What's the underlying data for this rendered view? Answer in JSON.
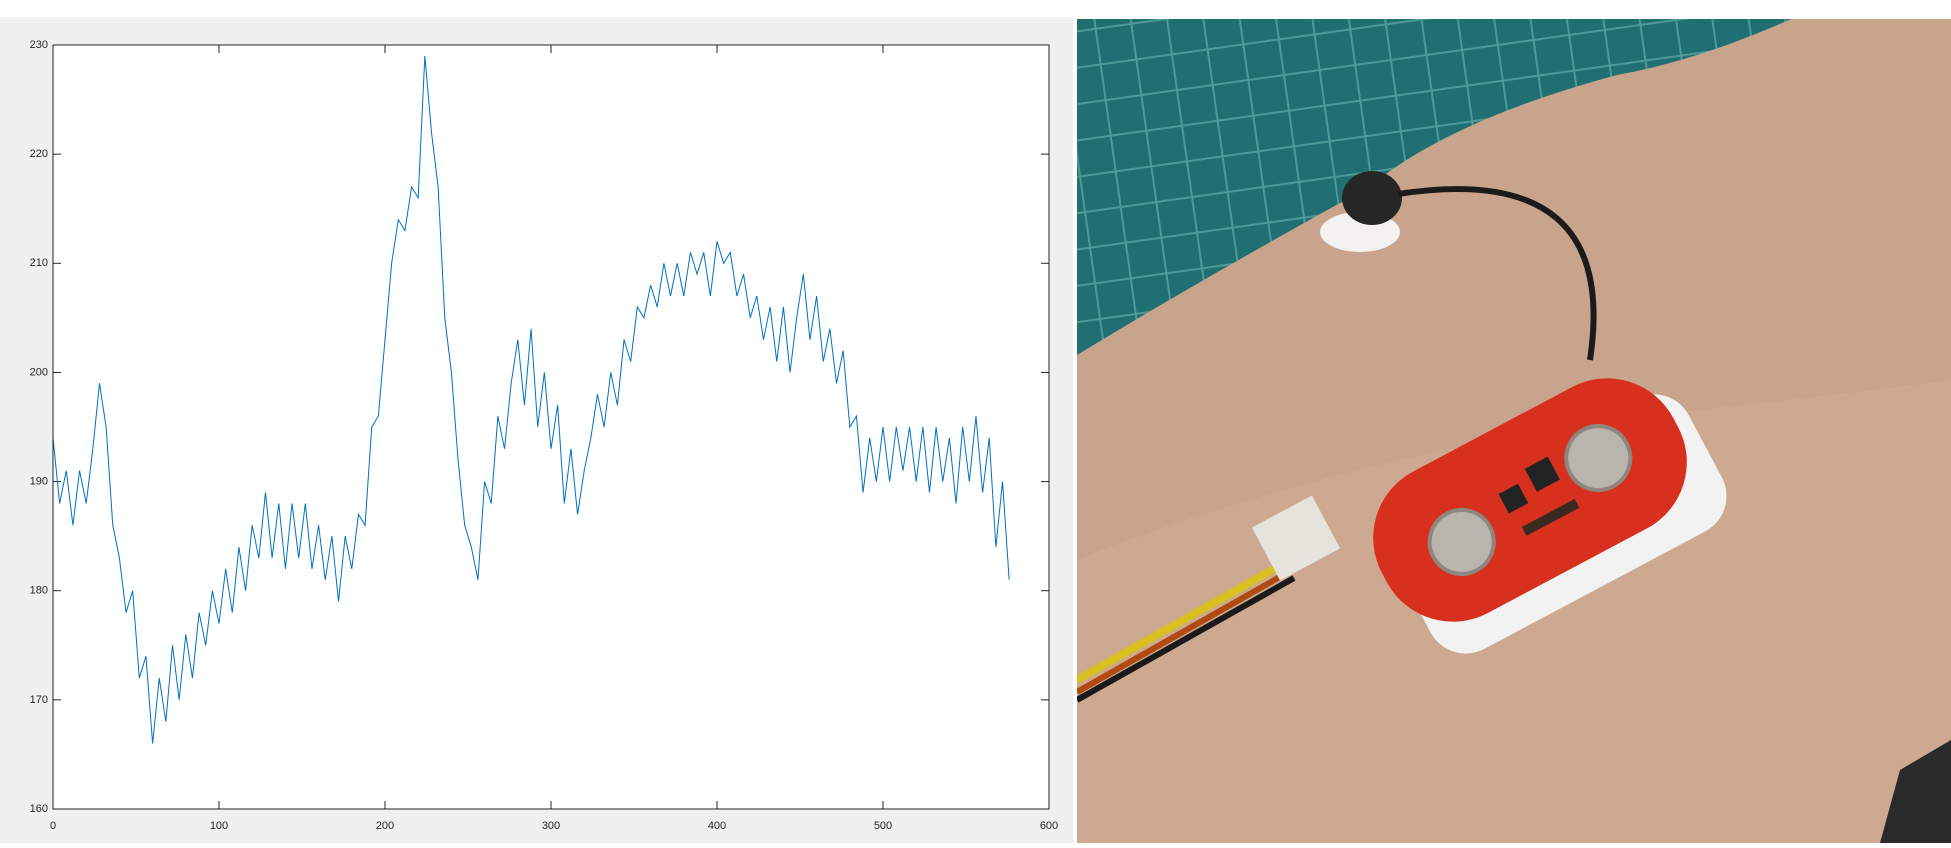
{
  "chart_data": {
    "type": "line",
    "color": "#0072bd",
    "x": [
      0,
      4,
      8,
      12,
      16,
      20,
      24,
      28,
      32,
      36,
      40,
      44,
      48,
      52,
      56,
      60,
      64,
      68,
      72,
      76,
      80,
      84,
      88,
      92,
      96,
      100,
      104,
      108,
      112,
      116,
      120,
      124,
      128,
      132,
      136,
      140,
      144,
      148,
      152,
      156,
      160,
      164,
      168,
      172,
      176,
      180,
      184,
      188,
      192,
      196,
      200,
      204,
      208,
      212,
      216,
      220,
      224,
      228,
      232,
      236,
      240,
      244,
      248,
      252,
      256,
      260,
      264,
      268,
      272,
      276,
      280,
      284,
      288,
      292,
      296,
      300,
      304,
      308,
      312,
      316,
      320,
      324,
      328,
      332,
      336,
      340,
      344,
      348,
      352,
      356,
      360,
      364,
      368,
      372,
      376,
      380,
      384,
      388,
      392,
      396,
      400,
      404,
      408,
      412,
      416,
      420,
      424,
      428,
      432,
      436,
      440,
      444,
      448,
      452,
      456,
      460,
      464,
      468,
      472,
      476,
      480,
      484,
      488,
      492,
      496,
      500,
      504,
      508,
      512,
      516,
      520,
      524,
      528,
      532,
      536,
      540,
      544,
      548,
      552,
      556,
      560,
      564,
      568,
      572,
      576
    ],
    "values": [
      194,
      188,
      191,
      186,
      191,
      188,
      193,
      199,
      195,
      186,
      183,
      178,
      180,
      172,
      174,
      166,
      172,
      168,
      175,
      170,
      176,
      172,
      178,
      175,
      180,
      177,
      182,
      178,
      184,
      180,
      186,
      183,
      189,
      183,
      188,
      182,
      188,
      183,
      188,
      182,
      186,
      181,
      185,
      179,
      185,
      182,
      187,
      186,
      195,
      196,
      203,
      210,
      214,
      213,
      217,
      216,
      229,
      222,
      217,
      205,
      200,
      192,
      186,
      184,
      181,
      190,
      188,
      196,
      193,
      199,
      203,
      197,
      204,
      195,
      200,
      193,
      197,
      188,
      193,
      187,
      191,
      194,
      198,
      195,
      200,
      197,
      203,
      201,
      206,
      205,
      208,
      206,
      210,
      207,
      210,
      207,
      211,
      209,
      211,
      207,
      212,
      210,
      211,
      207,
      209,
      205,
      207,
      203,
      206,
      201,
      206,
      200,
      205,
      209,
      203,
      207,
      201,
      204,
      199,
      202,
      195,
      196,
      189,
      194,
      190,
      195,
      190,
      195,
      191,
      195,
      190,
      195,
      189,
      195,
      190,
      194,
      188,
      195,
      190,
      196,
      189,
      194,
      184,
      190,
      181
    ],
    "xlim": [
      0,
      600
    ],
    "xticks": [
      0,
      100,
      200,
      300,
      400,
      500,
      600
    ],
    "ylim": [
      160,
      230
    ],
    "yticks": [
      160,
      170,
      180,
      190,
      200,
      210,
      220,
      230
    ],
    "box": true
  }
}
